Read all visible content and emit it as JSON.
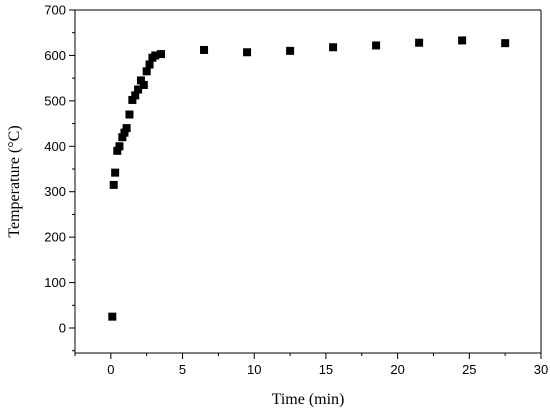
{
  "chart_data": {
    "type": "scatter",
    "title": "",
    "xlabel": "Time (min)",
    "ylabel": "Temperature (°C)",
    "xlim": [
      -2.5,
      30
    ],
    "ylim": [
      -55,
      700
    ],
    "xticks": [
      0,
      5,
      10,
      15,
      20,
      25,
      30
    ],
    "yticks": [
      0,
      100,
      200,
      300,
      400,
      500,
      600,
      700
    ],
    "marker": "square",
    "color": "#000000",
    "series": [
      {
        "x": [
          0.1,
          0.2,
          0.3,
          0.45,
          0.6,
          0.8,
          0.95,
          1.1,
          1.3,
          1.5,
          1.7,
          1.9,
          2.1,
          2.3,
          2.5,
          2.7,
          2.9,
          3.1,
          3.5,
          6.5,
          9.5,
          12.5,
          15.5,
          18.5,
          21.5,
          24.5,
          27.5
        ],
        "y": [
          25,
          315,
          342,
          390,
          400,
          420,
          430,
          440,
          470,
          502,
          512,
          525,
          545,
          535,
          565,
          580,
          595,
          600,
          603,
          612,
          607,
          610,
          618,
          622,
          628,
          633,
          627
        ]
      }
    ]
  }
}
